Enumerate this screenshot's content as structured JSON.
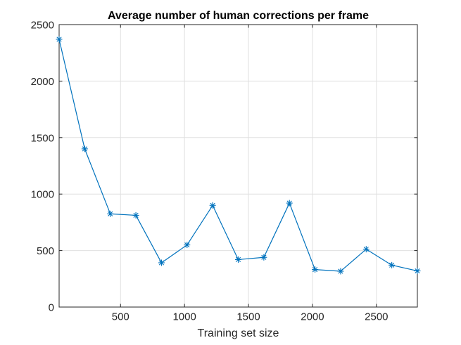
{
  "figure": {
    "background": "#ffffff"
  },
  "chart_data": {
    "type": "line",
    "title": "Average number of human corrections per frame",
    "xlabel": "Training set size",
    "ylabel": "",
    "x": [
      20,
      220,
      420,
      620,
      820,
      1020,
      1220,
      1420,
      1620,
      1820,
      2020,
      2220,
      2420,
      2620,
      2820
    ],
    "y": [
      2370,
      1400,
      825,
      812,
      392,
      550,
      900,
      420,
      440,
      920,
      332,
      317,
      512,
      371,
      320
    ],
    "series_name": "human corrections per frame",
    "xlim": [
      20,
      2820
    ],
    "ylim": [
      0,
      2500
    ],
    "xticks": [
      500,
      1000,
      1500,
      2000,
      2500
    ],
    "yticks": [
      0,
      500,
      1000,
      1500,
      2000,
      2500
    ],
    "grid": true,
    "legend_position": "none",
    "marker": "asterisk",
    "line_color": "#0072BD",
    "marker_color": "#0072BD",
    "grid_color": "#e0e0e0",
    "axis_color": "#262626",
    "tick_direction": "in",
    "box": true
  }
}
